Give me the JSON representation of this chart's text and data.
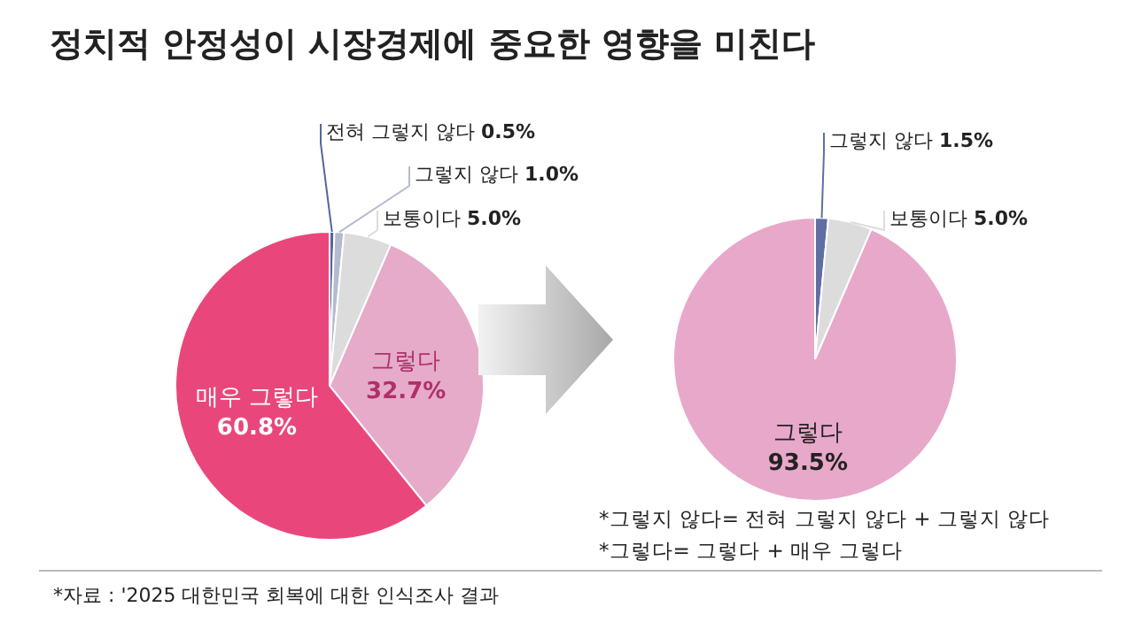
{
  "chart_data": [
    {
      "type": "pie",
      "title": "정치적 안정성이 시장경제에 중요한 영향을 미친다",
      "categories": [
        "전혀 그렇지 않다",
        "그렇지 않다",
        "보통이다",
        "그렇다",
        "매우 그렇다"
      ],
      "values": [
        0.5,
        1.0,
        5.0,
        32.7,
        60.8
      ],
      "value_labels": [
        "0.5%",
        "1.0%",
        "5.0%",
        "32.7%",
        "60.8%"
      ],
      "colors": [
        "#56659a",
        "#b3bccf",
        "#dcdcdc",
        "#e6abc9",
        "#e9477c"
      ],
      "annotations": [
        "*자료 : '2025 대한민국 회복에 대한 인식조사 결과"
      ]
    },
    {
      "type": "pie",
      "categories": [
        "그렇지 않다",
        "보통이다",
        "그렇다"
      ],
      "values": [
        1.5,
        5.0,
        93.5
      ],
      "value_labels": [
        "1.5%",
        "5.0%",
        "93.5%"
      ],
      "colors": [
        "#5f6fa3",
        "#dcdcdc",
        "#e8a8c9"
      ],
      "annotations": [
        "*그렇지 않다= 전혀 그렇지 않다 + 그렇지 않다",
        "*그렇다= 그렇다 + 매우 그렇다"
      ]
    }
  ]
}
